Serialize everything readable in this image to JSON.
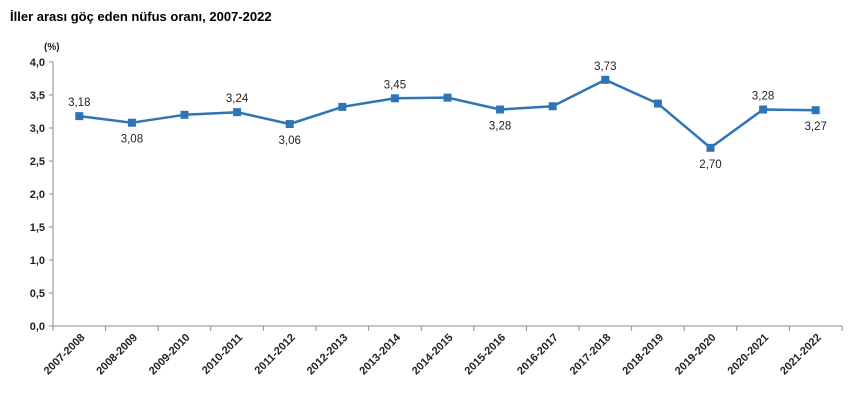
{
  "chart_data": {
    "type": "line",
    "title": "İller arası göç eden nüfus oranı, 2007-2022",
    "ylabel": "(%)",
    "xlabel": "",
    "ylim": [
      0,
      4
    ],
    "yticks": [
      "0,0",
      "0,5",
      "1,0",
      "1,5",
      "2,0",
      "2,5",
      "3,0",
      "3,5",
      "4,0"
    ],
    "categories": [
      "2007-2008",
      "2008-2009",
      "2009-2010",
      "2010-2011",
      "2011-2012",
      "2012-2013",
      "2013-2014",
      "2014-2015",
      "2015-2016",
      "2016-2017",
      "2017-2018",
      "2018-2019",
      "2019-2020",
      "2020-2021",
      "2021-2022"
    ],
    "series": [
      {
        "name": "İller arası göç eden nüfus oranı",
        "color": "#2e75b6",
        "values": [
          3.18,
          3.08,
          3.2,
          3.24,
          3.06,
          3.32,
          3.45,
          3.46,
          3.28,
          3.33,
          3.73,
          3.37,
          2.7,
          3.28,
          3.27
        ],
        "labels": [
          "3,18",
          "3,08",
          "",
          "3,24",
          "3,06",
          "",
          "3,45",
          "",
          "3,28",
          "",
          "3,73",
          "",
          "2,70",
          "3,28",
          "3,27"
        ],
        "label_pos": [
          "above",
          "below",
          "",
          "above",
          "below",
          "",
          "above",
          "",
          "below",
          "",
          "above",
          "",
          "below",
          "above",
          "below"
        ]
      }
    ],
    "grid": false
  }
}
